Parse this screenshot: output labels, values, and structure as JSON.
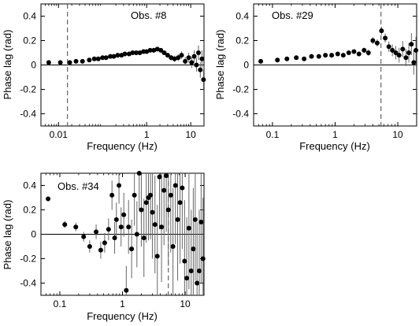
{
  "chart_data": [
    {
      "type": "scatter",
      "annotation": "Obs. #8",
      "xlabel": "Frequency (Hz)",
      "ylabel": "Phase lag (rad)",
      "xscale": "log",
      "xlim": [
        0.004,
        20
      ],
      "ylim": [
        -0.5,
        0.5
      ],
      "xticks": [
        {
          "value": 0.01,
          "label": "0.01"
        },
        {
          "value": 1,
          "label": "1"
        },
        {
          "value": 10,
          "label": "10"
        }
      ],
      "yticks": [
        {
          "value": 0.4,
          "label": "0.4"
        },
        {
          "value": 0.2,
          "label": "0.2"
        },
        {
          "value": 0,
          "label": "0"
        },
        {
          "value": -0.2,
          "label": "-0.2"
        },
        {
          "value": -0.4,
          "label": "-0.4"
        }
      ],
      "reference_line_y": 0,
      "vline_x": 0.016,
      "grid": false,
      "points": [
        {
          "x": 0.006,
          "y": 0.02,
          "err": 0.005
        },
        {
          "x": 0.011,
          "y": 0.02,
          "err": 0.005
        },
        {
          "x": 0.018,
          "y": 0.02,
          "err": 0.005
        },
        {
          "x": 0.025,
          "y": 0.03,
          "err": 0.005
        },
        {
          "x": 0.035,
          "y": 0.03,
          "err": 0.005
        },
        {
          "x": 0.05,
          "y": 0.04,
          "err": 0.006
        },
        {
          "x": 0.065,
          "y": 0.05,
          "err": 0.006
        },
        {
          "x": 0.08,
          "y": 0.05,
          "err": 0.006
        },
        {
          "x": 0.1,
          "y": 0.06,
          "err": 0.006
        },
        {
          "x": 0.12,
          "y": 0.06,
          "err": 0.007
        },
        {
          "x": 0.15,
          "y": 0.07,
          "err": 0.007
        },
        {
          "x": 0.18,
          "y": 0.07,
          "err": 0.007
        },
        {
          "x": 0.22,
          "y": 0.08,
          "err": 0.008
        },
        {
          "x": 0.27,
          "y": 0.08,
          "err": 0.008
        },
        {
          "x": 0.32,
          "y": 0.09,
          "err": 0.008
        },
        {
          "x": 0.4,
          "y": 0.09,
          "err": 0.009
        },
        {
          "x": 0.48,
          "y": 0.1,
          "err": 0.009
        },
        {
          "x": 0.58,
          "y": 0.1,
          "err": 0.01
        },
        {
          "x": 0.7,
          "y": 0.1,
          "err": 0.01
        },
        {
          "x": 0.85,
          "y": 0.11,
          "err": 0.011
        },
        {
          "x": 1.0,
          "y": 0.11,
          "err": 0.012
        },
        {
          "x": 1.2,
          "y": 0.12,
          "err": 0.013
        },
        {
          "x": 1.45,
          "y": 0.12,
          "err": 0.014
        },
        {
          "x": 1.75,
          "y": 0.13,
          "err": 0.015
        },
        {
          "x": 2.1,
          "y": 0.12,
          "err": 0.016
        },
        {
          "x": 2.5,
          "y": 0.1,
          "err": 0.018
        },
        {
          "x": 3.0,
          "y": 0.08,
          "err": 0.02
        },
        {
          "x": 3.6,
          "y": 0.06,
          "err": 0.022
        },
        {
          "x": 4.3,
          "y": 0.05,
          "err": 0.025
        },
        {
          "x": 5.2,
          "y": 0.06,
          "err": 0.028
        },
        {
          "x": 6.2,
          "y": 0.08,
          "err": 0.032
        },
        {
          "x": 7.5,
          "y": 0.03,
          "err": 0.036
        },
        {
          "x": 9.0,
          "y": 0.06,
          "err": 0.04
        },
        {
          "x": 10.5,
          "y": 0.02,
          "err": 0.045
        },
        {
          "x": 12.0,
          "y": 0.07,
          "err": 0.05
        },
        {
          "x": 13.5,
          "y": 0.0,
          "err": 0.055
        },
        {
          "x": 15.0,
          "y": 0.1,
          "err": 0.06
        },
        {
          "x": 16.5,
          "y": -0.04,
          "err": 0.065
        },
        {
          "x": 18.0,
          "y": 0.05,
          "err": 0.07
        },
        {
          "x": 19.5,
          "y": -0.12,
          "err": 0.08
        }
      ]
    },
    {
      "type": "scatter",
      "annotation": "Obs. #29",
      "xlabel": "Frequency (Hz)",
      "ylabel": "Phase lag (rad)",
      "xscale": "log",
      "xlim": [
        0.05,
        20
      ],
      "ylim": [
        -0.5,
        0.5
      ],
      "xticks": [
        {
          "value": 0.1,
          "label": "0.1"
        },
        {
          "value": 1,
          "label": "1"
        },
        {
          "value": 10,
          "label": "10"
        }
      ],
      "yticks": [
        {
          "value": 0.4,
          "label": "0.4"
        },
        {
          "value": 0.2,
          "label": "0.2"
        },
        {
          "value": 0,
          "label": "0"
        },
        {
          "value": -0.2,
          "label": "-0.2"
        },
        {
          "value": -0.4,
          "label": "-0.4"
        }
      ],
      "reference_line_y": 0,
      "vline_x": 5.4,
      "grid": false,
      "points": [
        {
          "x": 0.065,
          "y": 0.03,
          "err": 0.008
        },
        {
          "x": 0.12,
          "y": 0.04,
          "err": 0.008
        },
        {
          "x": 0.17,
          "y": 0.05,
          "err": 0.008
        },
        {
          "x": 0.24,
          "y": 0.06,
          "err": 0.009
        },
        {
          "x": 0.32,
          "y": 0.05,
          "err": 0.009
        },
        {
          "x": 0.42,
          "y": 0.07,
          "err": 0.01
        },
        {
          "x": 0.55,
          "y": 0.07,
          "err": 0.01
        },
        {
          "x": 0.7,
          "y": 0.08,
          "err": 0.011
        },
        {
          "x": 0.88,
          "y": 0.08,
          "err": 0.012
        },
        {
          "x": 1.1,
          "y": 0.09,
          "err": 0.013
        },
        {
          "x": 1.35,
          "y": 0.08,
          "err": 0.014
        },
        {
          "x": 1.65,
          "y": 0.1,
          "err": 0.016
        },
        {
          "x": 2.0,
          "y": 0.11,
          "err": 0.018
        },
        {
          "x": 2.4,
          "y": 0.09,
          "err": 0.02
        },
        {
          "x": 2.9,
          "y": 0.12,
          "err": 0.022
        },
        {
          "x": 3.4,
          "y": 0.1,
          "err": 0.025
        },
        {
          "x": 4.0,
          "y": 0.2,
          "err": 0.028
        },
        {
          "x": 4.7,
          "y": 0.18,
          "err": 0.03
        },
        {
          "x": 5.5,
          "y": 0.28,
          "err": 0.034
        },
        {
          "x": 6.3,
          "y": 0.22,
          "err": 0.038
        },
        {
          "x": 7.2,
          "y": 0.15,
          "err": 0.042
        },
        {
          "x": 8.2,
          "y": 0.12,
          "err": 0.048
        },
        {
          "x": 9.3,
          "y": 0.1,
          "err": 0.055
        },
        {
          "x": 10.5,
          "y": 0.08,
          "err": 0.06
        },
        {
          "x": 12.0,
          "y": 0.13,
          "err": 0.065
        },
        {
          "x": 13.5,
          "y": 0.06,
          "err": 0.07
        },
        {
          "x": 15.0,
          "y": 0.1,
          "err": 0.08
        },
        {
          "x": 16.5,
          "y": 0.17,
          "err": 0.09
        },
        {
          "x": 18.0,
          "y": 0.02,
          "err": 0.1
        },
        {
          "x": 19.5,
          "y": 0.12,
          "err": 0.11
        }
      ]
    },
    {
      "type": "scatter",
      "annotation": "Obs. #34",
      "xlabel": "Frequency (Hz)",
      "ylabel": "Phase lag (rad)",
      "xscale": "log",
      "xlim": [
        0.05,
        20
      ],
      "ylim": [
        -0.5,
        0.5
      ],
      "xticks": [
        {
          "value": 0.1,
          "label": "0.1"
        },
        {
          "value": 1,
          "label": "1"
        },
        {
          "value": 10,
          "label": "10"
        }
      ],
      "yticks": [
        {
          "value": 0.4,
          "label": "0.4"
        },
        {
          "value": 0.2,
          "label": "0.2"
        },
        {
          "value": 0,
          "label": "0"
        },
        {
          "value": -0.2,
          "label": "-0.2"
        },
        {
          "value": -0.4,
          "label": "-0.4"
        }
      ],
      "reference_line_y": 0,
      "vline_x": 5.4,
      "grid": false,
      "points": [
        {
          "x": 0.065,
          "y": 0.29,
          "err": 0.02
        },
        {
          "x": 0.12,
          "y": 0.08,
          "err": 0.03
        },
        {
          "x": 0.18,
          "y": 0.06,
          "err": 0.035
        },
        {
          "x": 0.24,
          "y": -0.02,
          "err": 0.04
        },
        {
          "x": 0.3,
          "y": -0.1,
          "err": 0.05
        },
        {
          "x": 0.38,
          "y": 0.02,
          "err": 0.06
        },
        {
          "x": 0.45,
          "y": -0.13,
          "err": 0.07
        },
        {
          "x": 0.52,
          "y": -0.07,
          "err": 0.08
        },
        {
          "x": 0.6,
          "y": 0.04,
          "err": 0.09
        },
        {
          "x": 0.68,
          "y": 0.32,
          "err": 0.12
        },
        {
          "x": 0.75,
          "y": -0.03,
          "err": 0.13
        },
        {
          "x": 0.8,
          "y": 0.12,
          "err": 0.14
        },
        {
          "x": 0.88,
          "y": 0.4,
          "err": 0.15
        },
        {
          "x": 0.95,
          "y": 0.06,
          "err": 0.16
        },
        {
          "x": 1.05,
          "y": 0.16,
          "err": 0.18
        },
        {
          "x": 1.15,
          "y": -0.46,
          "err": 0.2
        },
        {
          "x": 1.25,
          "y": 0.06,
          "err": 0.22
        },
        {
          "x": 1.4,
          "y": -0.12,
          "err": 0.24
        },
        {
          "x": 1.55,
          "y": 0.32,
          "err": 0.25
        },
        {
          "x": 1.7,
          "y": 0.0,
          "err": 0.27
        },
        {
          "x": 1.85,
          "y": 0.5,
          "err": 0.3
        },
        {
          "x": 2.0,
          "y": 0.2,
          "err": 0.3
        },
        {
          "x": 2.2,
          "y": -0.03,
          "err": 0.32
        },
        {
          "x": 2.4,
          "y": 0.26,
          "err": 0.33
        },
        {
          "x": 2.6,
          "y": 0.3,
          "err": 0.35
        },
        {
          "x": 2.8,
          "y": 0.32,
          "err": 0.36
        },
        {
          "x": 3.0,
          "y": 0.18,
          "err": 0.38
        },
        {
          "x": 3.3,
          "y": 0.08,
          "err": 0.4
        },
        {
          "x": 3.6,
          "y": -0.18,
          "err": 0.42
        },
        {
          "x": 3.9,
          "y": 0.47,
          "err": 0.43
        },
        {
          "x": 4.2,
          "y": 0.06,
          "err": 0.45
        },
        {
          "x": 4.6,
          "y": 0.36,
          "err": 0.45
        },
        {
          "x": 5.0,
          "y": 0.48,
          "err": 0.46
        },
        {
          "x": 5.4,
          "y": 0.2,
          "err": 0.46
        },
        {
          "x": 5.9,
          "y": 0.32,
          "err": 0.47
        },
        {
          "x": 6.4,
          "y": -0.1,
          "err": 0.48
        },
        {
          "x": 7.0,
          "y": 0.4,
          "err": 0.48
        },
        {
          "x": 7.6,
          "y": 0.12,
          "err": 0.5
        },
        {
          "x": 8.3,
          "y": 0.26,
          "err": 0.5
        },
        {
          "x": 9.0,
          "y": 0.38,
          "err": 0.5
        },
        {
          "x": 9.8,
          "y": -0.22,
          "err": 0.5
        },
        {
          "x": 10.6,
          "y": -0.36,
          "err": 0.5
        },
        {
          "x": 11.5,
          "y": 0.05,
          "err": 0.5
        },
        {
          "x": 12.5,
          "y": -0.3,
          "err": 0.5
        },
        {
          "x": 13.5,
          "y": -0.12,
          "err": 0.5
        },
        {
          "x": 14.5,
          "y": 0.12,
          "err": 0.5
        },
        {
          "x": 15.5,
          "y": -0.4,
          "err": 0.5
        },
        {
          "x": 16.8,
          "y": -0.3,
          "err": 0.5
        },
        {
          "x": 18.0,
          "y": 0.1,
          "err": 0.5
        },
        {
          "x": 19.3,
          "y": -0.2,
          "err": 0.5
        }
      ]
    }
  ]
}
